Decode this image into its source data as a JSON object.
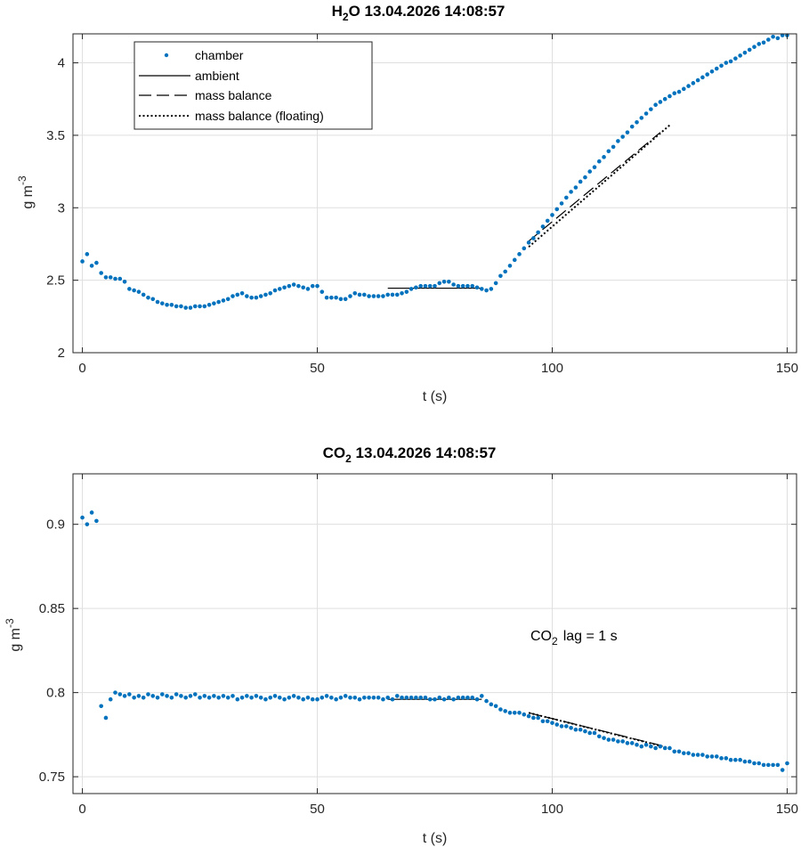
{
  "chart_data": [
    {
      "type": "scatter",
      "title": {
        "species": "H",
        "subscript": "2",
        "suffix": "O",
        "timestamp": "13.04.2026 14:08:57"
      },
      "xlabel": "t (s)",
      "ylabel": {
        "main": "g m",
        "superscript": "-3"
      },
      "xlim": [
        -2,
        152
      ],
      "ylim": [
        2,
        4.2
      ],
      "xticks": [
        0,
        50,
        100,
        150
      ],
      "xtick_labels": [
        "0",
        "50",
        "100",
        "150"
      ],
      "yticks": [
        2,
        2.5,
        3,
        3.5,
        4
      ],
      "ytick_labels": [
        "2",
        "2.5",
        "3",
        "3.5",
        "4"
      ],
      "grid": true,
      "legend": {
        "location": "top-left",
        "entries": [
          {
            "label": "chamber",
            "style": "dots"
          },
          {
            "label": "ambient",
            "style": "solid"
          },
          {
            "label": "mass balance",
            "style": "dashed"
          },
          {
            "label": "mass balance (floating)",
            "style": "dotted"
          }
        ]
      },
      "series": [
        {
          "name": "chamber",
          "style": "dots",
          "color": "#0072BD",
          "x": [
            0,
            1,
            2,
            3,
            4,
            5,
            6,
            7,
            8,
            9,
            10,
            11,
            12,
            13,
            14,
            15,
            16,
            17,
            18,
            19,
            20,
            21,
            22,
            23,
            24,
            25,
            26,
            27,
            28,
            29,
            30,
            31,
            32,
            33,
            34,
            35,
            36,
            37,
            38,
            39,
            40,
            41,
            42,
            43,
            44,
            45,
            46,
            47,
            48,
            49,
            50,
            51,
            52,
            53,
            54,
            55,
            56,
            57,
            58,
            59,
            60,
            61,
            62,
            63,
            64,
            65,
            66,
            67,
            68,
            69,
            70,
            71,
            72,
            73,
            74,
            75,
            76,
            77,
            78,
            79,
            80,
            81,
            82,
            83,
            84,
            85,
            86,
            87,
            88,
            89,
            90,
            91,
            92,
            93,
            94,
            95,
            96,
            97,
            98,
            99,
            100,
            101,
            102,
            103,
            104,
            105,
            106,
            107,
            108,
            109,
            110,
            111,
            112,
            113,
            114,
            115,
            116,
            117,
            118,
            119,
            120,
            121,
            122,
            123,
            124,
            125,
            126,
            127,
            128,
            129,
            130,
            131,
            132,
            133,
            134,
            135,
            136,
            137,
            138,
            139,
            140,
            141,
            142,
            143,
            144,
            145,
            146,
            147,
            148,
            149,
            150
          ],
          "y": [
            2.63,
            2.68,
            2.6,
            2.62,
            2.55,
            2.52,
            2.52,
            2.51,
            2.51,
            2.49,
            2.44,
            2.43,
            2.42,
            2.4,
            2.38,
            2.37,
            2.35,
            2.34,
            2.33,
            2.33,
            2.32,
            2.32,
            2.31,
            2.31,
            2.32,
            2.32,
            2.32,
            2.33,
            2.34,
            2.35,
            2.36,
            2.37,
            2.39,
            2.4,
            2.41,
            2.39,
            2.38,
            2.38,
            2.39,
            2.4,
            2.41,
            2.43,
            2.44,
            2.45,
            2.46,
            2.47,
            2.46,
            2.45,
            2.44,
            2.46,
            2.46,
            2.42,
            2.38,
            2.38,
            2.38,
            2.37,
            2.37,
            2.39,
            2.41,
            2.4,
            2.4,
            2.39,
            2.39,
            2.39,
            2.39,
            2.4,
            2.4,
            2.4,
            2.41,
            2.42,
            2.44,
            2.45,
            2.46,
            2.46,
            2.46,
            2.46,
            2.48,
            2.49,
            2.49,
            2.47,
            2.46,
            2.46,
            2.46,
            2.46,
            2.45,
            2.44,
            2.43,
            2.44,
            2.48,
            2.53,
            2.56,
            2.6,
            2.64,
            2.68,
            2.72,
            2.76,
            2.79,
            2.83,
            2.87,
            2.91,
            2.95,
            2.99,
            3.03,
            3.07,
            3.11,
            3.14,
            3.18,
            3.21,
            3.25,
            3.28,
            3.32,
            3.35,
            3.39,
            3.42,
            3.46,
            3.49,
            3.52,
            3.56,
            3.59,
            3.62,
            3.65,
            3.68,
            3.71,
            3.73,
            3.75,
            3.77,
            3.79,
            3.8,
            3.82,
            3.84,
            3.86,
            3.88,
            3.9,
            3.92,
            3.94,
            3.96,
            3.98,
            4.0,
            4.01,
            4.03,
            4.05,
            4.07,
            4.09,
            4.11,
            4.13,
            4.14,
            4.16,
            4.18,
            4.17,
            4.19,
            4.19
          ]
        },
        {
          "name": "ambient",
          "style": "solid",
          "color": "#000000",
          "x": [
            65,
            85
          ],
          "y": [
            2.445,
            2.445
          ]
        },
        {
          "name": "mass balance",
          "style": "dashed",
          "color": "#000000",
          "x": [
            95,
            123
          ],
          "y": [
            2.77,
            3.52
          ]
        },
        {
          "name": "mass balance (floating)",
          "style": "dotted",
          "color": "#000000",
          "x": [
            95,
            125
          ],
          "y": [
            2.73,
            3.57
          ]
        }
      ]
    },
    {
      "type": "scatter",
      "title": {
        "species": "CO",
        "subscript": "2",
        "suffix": "",
        "timestamp": "13.04.2026 14:08:57"
      },
      "xlabel": "t (s)",
      "ylabel": {
        "main": "g m",
        "superscript": "-3"
      },
      "xlim": [
        -2,
        152
      ],
      "ylim": [
        0.74,
        0.93
      ],
      "xticks": [
        0,
        50,
        100,
        150
      ],
      "xtick_labels": [
        "0",
        "50",
        "100",
        "150"
      ],
      "yticks": [
        0.75,
        0.8,
        0.85,
        0.9
      ],
      "ytick_labels": [
        "0.75",
        "0.8",
        "0.85",
        "0.9"
      ],
      "grid": true,
      "annotation": {
        "species": "CO",
        "subscript": "2",
        "text": "lag = 1 s"
      },
      "series": [
        {
          "name": "chamber",
          "style": "dots",
          "color": "#0072BD",
          "x": [
            0,
            1,
            2,
            3,
            4,
            5,
            6,
            7,
            8,
            9,
            10,
            11,
            12,
            13,
            14,
            15,
            16,
            17,
            18,
            19,
            20,
            21,
            22,
            23,
            24,
            25,
            26,
            27,
            28,
            29,
            30,
            31,
            32,
            33,
            34,
            35,
            36,
            37,
            38,
            39,
            40,
            41,
            42,
            43,
            44,
            45,
            46,
            47,
            48,
            49,
            50,
            51,
            52,
            53,
            54,
            55,
            56,
            57,
            58,
            59,
            60,
            61,
            62,
            63,
            64,
            65,
            66,
            67,
            68,
            69,
            70,
            71,
            72,
            73,
            74,
            75,
            76,
            77,
            78,
            79,
            80,
            81,
            82,
            83,
            84,
            85,
            86,
            87,
            88,
            89,
            90,
            91,
            92,
            93,
            94,
            95,
            96,
            97,
            98,
            99,
            100,
            101,
            102,
            103,
            104,
            105,
            106,
            107,
            108,
            109,
            110,
            111,
            112,
            113,
            114,
            115,
            116,
            117,
            118,
            119,
            120,
            121,
            122,
            123,
            124,
            125,
            126,
            127,
            128,
            129,
            130,
            131,
            132,
            133,
            134,
            135,
            136,
            137,
            138,
            139,
            140,
            141,
            142,
            143,
            144,
            145,
            146,
            147,
            148,
            149,
            150
          ],
          "y": [
            0.904,
            0.9,
            0.907,
            0.902,
            0.792,
            0.785,
            0.796,
            0.8,
            0.799,
            0.798,
            0.799,
            0.797,
            0.798,
            0.797,
            0.799,
            0.798,
            0.797,
            0.799,
            0.798,
            0.797,
            0.799,
            0.798,
            0.797,
            0.798,
            0.799,
            0.797,
            0.798,
            0.797,
            0.798,
            0.797,
            0.798,
            0.797,
            0.798,
            0.796,
            0.797,
            0.798,
            0.797,
            0.798,
            0.797,
            0.796,
            0.797,
            0.798,
            0.797,
            0.796,
            0.797,
            0.798,
            0.797,
            0.796,
            0.797,
            0.796,
            0.796,
            0.797,
            0.798,
            0.797,
            0.796,
            0.797,
            0.798,
            0.797,
            0.797,
            0.796,
            0.797,
            0.797,
            0.797,
            0.797,
            0.796,
            0.797,
            0.796,
            0.798,
            0.797,
            0.797,
            0.797,
            0.797,
            0.797,
            0.797,
            0.796,
            0.796,
            0.797,
            0.796,
            0.797,
            0.796,
            0.797,
            0.797,
            0.797,
            0.797,
            0.796,
            0.798,
            0.795,
            0.793,
            0.792,
            0.79,
            0.789,
            0.788,
            0.788,
            0.788,
            0.787,
            0.786,
            0.785,
            0.785,
            0.783,
            0.783,
            0.782,
            0.781,
            0.78,
            0.78,
            0.779,
            0.778,
            0.778,
            0.777,
            0.776,
            0.776,
            0.774,
            0.773,
            0.772,
            0.772,
            0.771,
            0.771,
            0.77,
            0.77,
            0.769,
            0.768,
            0.769,
            0.768,
            0.767,
            0.768,
            0.767,
            0.767,
            0.765,
            0.765,
            0.764,
            0.764,
            0.763,
            0.763,
            0.763,
            0.762,
            0.762,
            0.762,
            0.761,
            0.761,
            0.76,
            0.76,
            0.76,
            0.759,
            0.759,
            0.758,
            0.758,
            0.757,
            0.757,
            0.757,
            0.757,
            0.754,
            0.758
          ]
        },
        {
          "name": "ambient",
          "style": "solid",
          "color": "#000000",
          "x": [
            65,
            85
          ],
          "y": [
            0.796,
            0.796
          ]
        },
        {
          "name": "mass balance",
          "style": "dashed",
          "color": "#000000",
          "x": [
            95,
            124
          ],
          "y": [
            0.788,
            0.768
          ]
        },
        {
          "name": "mass balance (floating)",
          "style": "dotted",
          "color": "#000000",
          "x": [
            95,
            125
          ],
          "y": [
            0.788,
            0.767
          ]
        }
      ]
    }
  ]
}
